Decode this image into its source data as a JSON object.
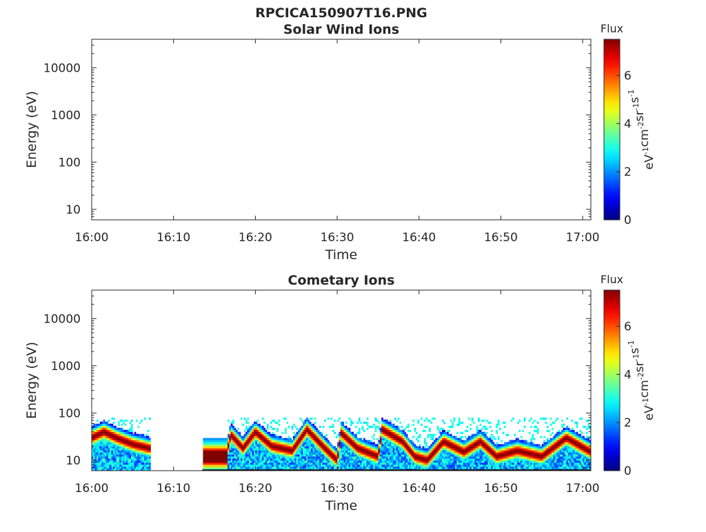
{
  "figure_title": "RPCICA150907T16.PNG",
  "chart_data": [
    {
      "type": "heatmap",
      "title": "Solar Wind Ions",
      "xlabel": "Time",
      "ylabel": "Energy (eV)",
      "x_ticks": [
        "16:00",
        "16:10",
        "16:20",
        "16:30",
        "16:40",
        "16:50",
        "17:00"
      ],
      "x_range_minutes": [
        0,
        61
      ],
      "y_scale": "log",
      "y_range_eV": [
        6,
        40000
      ],
      "y_ticks": [
        10,
        100,
        1000,
        10000
      ],
      "y_tick_labels": [
        "10",
        "100",
        "1000",
        "10000"
      ],
      "colorbar": {
        "title": "Flux",
        "unit_label": "eV-1cm-2sr-1s-1",
        "range": [
          0,
          7.5
        ],
        "ticks": [
          0,
          2,
          4,
          6
        ],
        "tick_labels": [
          "0",
          "2",
          "4",
          "6"
        ],
        "colormap": "jet"
      },
      "data": "empty"
    },
    {
      "type": "heatmap",
      "title": "Cometary Ions",
      "xlabel": "Time",
      "ylabel": "Energy (eV)",
      "x_ticks": [
        "16:00",
        "16:10",
        "16:20",
        "16:30",
        "16:40",
        "16:50",
        "17:00"
      ],
      "x_range_minutes": [
        0,
        61
      ],
      "y_scale": "log",
      "y_range_eV": [
        6,
        40000
      ],
      "y_ticks": [
        10,
        100,
        1000,
        10000
      ],
      "y_tick_labels": [
        "10",
        "100",
        "1000",
        "10000"
      ],
      "colorbar": {
        "title": "Flux",
        "unit_label": "eV-1cm-2sr-1s-1",
        "range": [
          0,
          7.5
        ],
        "ticks": [
          0,
          2,
          4,
          6
        ],
        "tick_labels": [
          "0",
          "2",
          "4",
          "6"
        ],
        "colormap": "jet"
      },
      "data_gaps_minutes": [
        [
          7.2,
          13.5
        ]
      ],
      "max_energy_eV": 80,
      "peak_flux_ridge": [
        {
          "t": 0.0,
          "E": 30
        },
        {
          "t": 1.5,
          "E": 40
        },
        {
          "t": 3.0,
          "E": 30
        },
        {
          "t": 5.0,
          "E": 22
        },
        {
          "t": 7.0,
          "E": 18
        },
        {
          "t": 13.5,
          "E": 14
        },
        {
          "t": 16.5,
          "E": 14
        },
        {
          "t": 17.0,
          "E": 35
        },
        {
          "t": 18.5,
          "E": 18
        },
        {
          "t": 20.0,
          "E": 40
        },
        {
          "t": 22.0,
          "E": 20
        },
        {
          "t": 24.5,
          "E": 16
        },
        {
          "t": 26.3,
          "E": 45
        },
        {
          "t": 28.5,
          "E": 18
        },
        {
          "t": 30.0,
          "E": 10
        },
        {
          "t": 30.5,
          "E": 38
        },
        {
          "t": 32.5,
          "E": 18
        },
        {
          "t": 35.0,
          "E": 12
        },
        {
          "t": 35.5,
          "E": 45
        },
        {
          "t": 38.0,
          "E": 25
        },
        {
          "t": 39.5,
          "E": 12
        },
        {
          "t": 41.0,
          "E": 10
        },
        {
          "t": 43.0,
          "E": 25
        },
        {
          "t": 45.5,
          "E": 15
        },
        {
          "t": 47.5,
          "E": 25
        },
        {
          "t": 49.5,
          "E": 12
        },
        {
          "t": 52.0,
          "E": 16
        },
        {
          "t": 55.0,
          "E": 12
        },
        {
          "t": 58.0,
          "E": 30
        },
        {
          "t": 61.0,
          "E": 15
        }
      ],
      "peak_flux_max": 7.5
    }
  ]
}
